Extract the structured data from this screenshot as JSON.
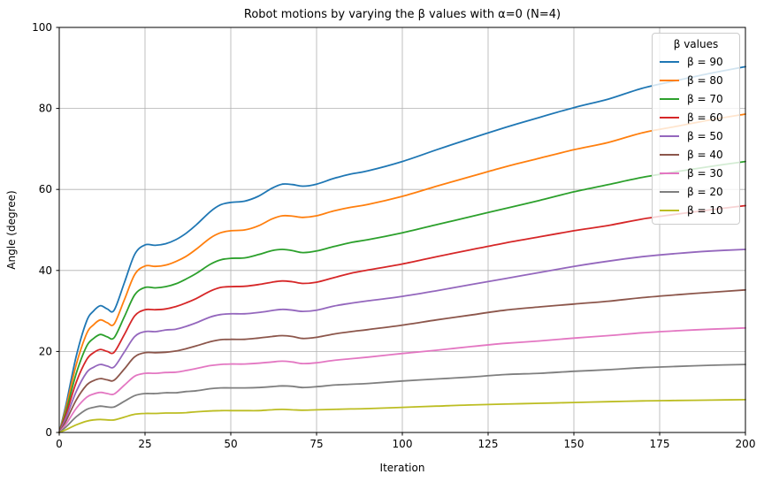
{
  "colors": {
    "grid": "#b0b0b0",
    "spine": "#000000",
    "background": "#ffffff",
    "legend_border": "#cccccc"
  },
  "chart_data": {
    "type": "line",
    "title": "Robot motions by varying the β values with α=0 (N=4)",
    "xlabel": "Iteration",
    "ylabel": "Angle (degree)",
    "xlim": [
      0,
      200
    ],
    "ylim": [
      0,
      100
    ],
    "xticks": [
      0,
      25,
      50,
      75,
      100,
      125,
      150,
      175,
      200
    ],
    "yticks": [
      0,
      20,
      40,
      60,
      80,
      100
    ],
    "grid": true,
    "legend_title": "β values",
    "legend_position": "upper right",
    "x": [
      0,
      2,
      5,
      8,
      10,
      12,
      14,
      16,
      19,
      22,
      25,
      28,
      31,
      34,
      37,
      40,
      44,
      47,
      50,
      54,
      58,
      62,
      65,
      68,
      71,
      75,
      80,
      85,
      90,
      100,
      110,
      120,
      130,
      140,
      150,
      160,
      170,
      180,
      190,
      200
    ],
    "series": [
      {
        "label": "β = 90",
        "color": "#1f77b4",
        "values": [
          0,
          7.0,
          19.0,
          27.5,
          30.0,
          31.3,
          30.5,
          30.2,
          37.0,
          44.0,
          46.3,
          46.2,
          46.6,
          47.6,
          49.2,
          51.3,
          54.5,
          56.2,
          56.8,
          57.1,
          58.3,
          60.3,
          61.3,
          61.2,
          60.8,
          61.3,
          62.7,
          63.8,
          64.6,
          66.9,
          69.8,
          72.6,
          75.3,
          77.8,
          80.2,
          82.3,
          85.0,
          86.9,
          88.7,
          90.3
        ]
      },
      {
        "label": "β = 80",
        "color": "#ff7f0e",
        "values": [
          0,
          6.2,
          16.9,
          24.4,
          26.6,
          27.8,
          27.1,
          26.8,
          32.8,
          39.0,
          41.1,
          41.0,
          41.3,
          42.2,
          43.5,
          45.3,
          48.0,
          49.3,
          49.8,
          50.0,
          51.0,
          52.7,
          53.5,
          53.4,
          53.1,
          53.5,
          54.7,
          55.6,
          56.3,
          58.3,
          60.8,
          63.2,
          65.6,
          67.7,
          69.8,
          71.6,
          74.0,
          75.6,
          77.2,
          78.6
        ]
      },
      {
        "label": "β = 70",
        "color": "#2ca02c",
        "values": [
          0,
          5.3,
          14.7,
          21.3,
          23.2,
          24.2,
          23.6,
          23.4,
          28.6,
          34.0,
          35.8,
          35.7,
          36.0,
          36.7,
          37.9,
          39.3,
          41.5,
          42.6,
          43.0,
          43.1,
          43.9,
          44.9,
          45.2,
          44.9,
          44.4,
          44.8,
          45.9,
          46.9,
          47.6,
          49.3,
          51.3,
          53.3,
          55.3,
          57.3,
          59.4,
          61.2,
          63.0,
          64.4,
          65.7,
          66.9
        ]
      },
      {
        "label": "β = 60",
        "color": "#d62728",
        "values": [
          0,
          4.5,
          12.5,
          18.0,
          19.7,
          20.5,
          20.0,
          19.8,
          24.2,
          28.8,
          30.3,
          30.3,
          30.5,
          31.1,
          32.0,
          33.1,
          34.9,
          35.8,
          36.0,
          36.1,
          36.5,
          37.1,
          37.4,
          37.2,
          36.8,
          37.1,
          38.2,
          39.3,
          40.1,
          41.6,
          43.4,
          45.1,
          46.8,
          48.3,
          49.8,
          51.1,
          52.7,
          53.9,
          55.0,
          56.0
        ]
      },
      {
        "label": "β = 50",
        "color": "#9467bd",
        "values": [
          0,
          3.7,
          10.2,
          14.8,
          16.1,
          16.8,
          16.4,
          16.2,
          19.9,
          23.7,
          24.9,
          24.9,
          25.3,
          25.5,
          26.2,
          27.1,
          28.5,
          29.1,
          29.3,
          29.3,
          29.6,
          30.1,
          30.4,
          30.2,
          29.9,
          30.2,
          31.2,
          31.9,
          32.5,
          33.6,
          35.0,
          36.5,
          38.0,
          39.5,
          41.0,
          42.3,
          43.4,
          44.2,
          44.8,
          45.2
        ]
      },
      {
        "label": "β = 40",
        "color": "#8c564b",
        "values": [
          0,
          2.9,
          8.1,
          11.7,
          12.8,
          13.3,
          13.0,
          12.9,
          15.7,
          18.7,
          19.7,
          19.7,
          19.8,
          20.1,
          20.7,
          21.4,
          22.4,
          22.9,
          23.0,
          23.0,
          23.3,
          23.7,
          23.9,
          23.7,
          23.2,
          23.5,
          24.3,
          24.9,
          25.4,
          26.5,
          27.8,
          29.0,
          30.2,
          31.0,
          31.7,
          32.4,
          33.3,
          34.0,
          34.6,
          35.2
        ]
      },
      {
        "label": "β = 30",
        "color": "#e377c2",
        "values": [
          0,
          2.1,
          6.0,
          8.7,
          9.5,
          9.9,
          9.6,
          9.5,
          11.7,
          13.9,
          14.6,
          14.6,
          14.8,
          14.9,
          15.3,
          15.8,
          16.5,
          16.8,
          16.9,
          16.9,
          17.1,
          17.4,
          17.6,
          17.4,
          17.0,
          17.2,
          17.8,
          18.2,
          18.6,
          19.5,
          20.3,
          21.2,
          22.0,
          22.6,
          23.3,
          23.9,
          24.6,
          25.1,
          25.5,
          25.8
        ]
      },
      {
        "label": "β = 20",
        "color": "#7f7f7f",
        "values": [
          0,
          1.4,
          3.9,
          5.7,
          6.2,
          6.5,
          6.3,
          6.3,
          7.7,
          9.1,
          9.6,
          9.6,
          9.8,
          9.8,
          10.1,
          10.3,
          10.8,
          11.0,
          11.0,
          11.0,
          11.1,
          11.3,
          11.5,
          11.4,
          11.1,
          11.3,
          11.7,
          11.9,
          12.1,
          12.7,
          13.2,
          13.7,
          14.3,
          14.6,
          15.1,
          15.5,
          16.0,
          16.3,
          16.6,
          16.8
        ]
      },
      {
        "label": "β = 10",
        "color": "#bcbd22",
        "values": [
          0,
          0.7,
          1.9,
          2.8,
          3.1,
          3.2,
          3.1,
          3.1,
          3.8,
          4.5,
          4.7,
          4.7,
          4.8,
          4.8,
          4.9,
          5.1,
          5.3,
          5.4,
          5.4,
          5.4,
          5.4,
          5.6,
          5.7,
          5.6,
          5.5,
          5.6,
          5.7,
          5.8,
          5.9,
          6.2,
          6.5,
          6.8,
          7.0,
          7.2,
          7.4,
          7.6,
          7.8,
          7.9,
          8.0,
          8.1
        ]
      }
    ]
  }
}
